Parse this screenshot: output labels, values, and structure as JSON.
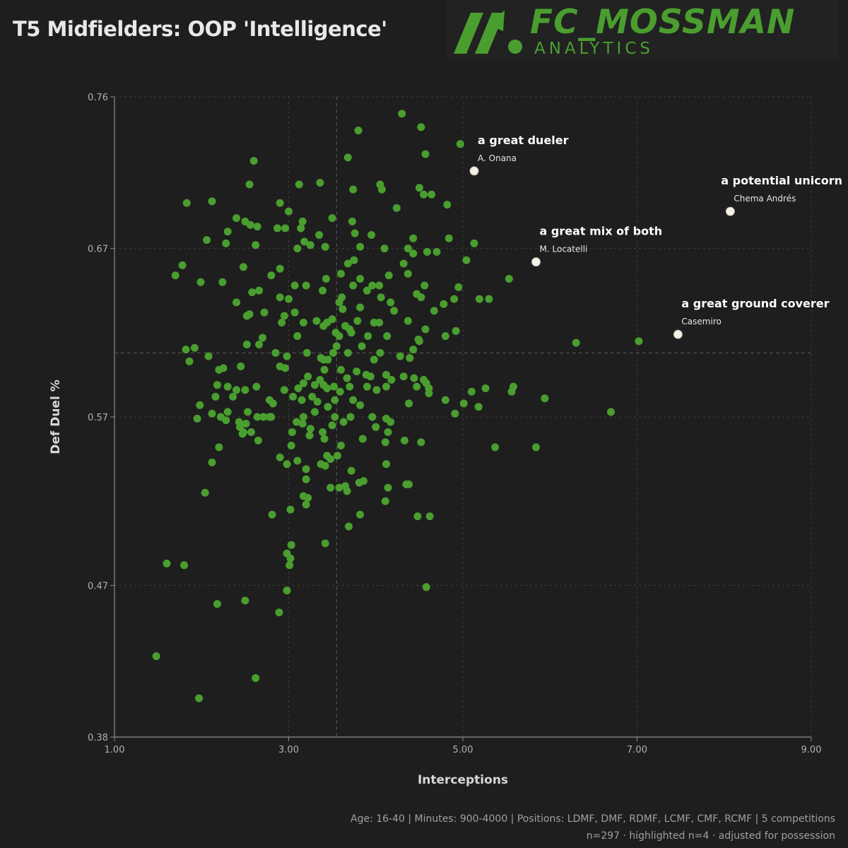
{
  "title": "T5 Midfielders: OOP 'Intelligence'",
  "brand": {
    "name": "FC_MOSSMAN",
    "subtitle": "ANALYTICS",
    "color": "#4a9e2f"
  },
  "footer": {
    "line1": "Age: 16-40 | Minutes: 900-4000 | Positions: LDMF, DMF, RDMF, LCMF, CMF, RCMF | 5 competitions",
    "line2": "n=297 · highlighted n=4 · adjusted for possession"
  },
  "chart_data": {
    "type": "scatter",
    "xlabel": "Interceptions",
    "ylabel": "Def Duel %",
    "xlim": [
      1.0,
      9.0
    ],
    "ylim": [
      0.38,
      0.76
    ],
    "xticks": [
      "1.00",
      "3.00",
      "5.00",
      "7.00",
      "9.00"
    ],
    "xtick_values": [
      1,
      3,
      5,
      7,
      9
    ],
    "yticks": [
      "0.76",
      "0.67",
      "0.57",
      "0.47",
      "0.38"
    ],
    "ytick_values": [
      0.76,
      0.67,
      0.57,
      0.47,
      0.38
    ],
    "reference_lines": {
      "x": 3.55,
      "y": 0.608
    },
    "colors": {
      "points": "#4a9e2f",
      "highlight": "#f4f1e6",
      "grid": "#3c3c3c",
      "background": "#1e1e1e"
    },
    "highlighted": [
      {
        "player": "A. Onana",
        "annotation": "a great dueler",
        "x": 5.13,
        "y": 0.716
      },
      {
        "player": "Chema Andrés",
        "annotation": "a potential unicorn",
        "x": 8.07,
        "y": 0.692
      },
      {
        "player": "M. Locatelli",
        "annotation": "a great mix of both",
        "x": 5.84,
        "y": 0.662
      },
      {
        "player": "Casemiro",
        "annotation": "a great ground coverer",
        "x": 7.47,
        "y": 0.619
      }
    ],
    "points": [
      [
        4.3,
        0.75
      ],
      [
        4.52,
        0.742
      ],
      [
        3.8,
        0.74
      ],
      [
        4.97,
        0.732
      ],
      [
        4.57,
        0.726
      ],
      [
        3.68,
        0.724
      ],
      [
        2.6,
        0.722
      ],
      [
        2.55,
        0.708
      ],
      [
        3.36,
        0.709
      ],
      [
        3.12,
        0.708
      ],
      [
        4.05,
        0.708
      ],
      [
        4.5,
        0.706
      ],
      [
        4.64,
        0.702
      ],
      [
        3.74,
        0.705
      ],
      [
        4.07,
        0.705
      ],
      [
        4.55,
        0.702
      ],
      [
        1.83,
        0.697
      ],
      [
        2.12,
        0.698
      ],
      [
        2.9,
        0.697
      ],
      [
        4.82,
        0.696
      ],
      [
        4.24,
        0.694
      ],
      [
        3.0,
        0.692
      ],
      [
        2.4,
        0.688
      ],
      [
        3.5,
        0.688
      ],
      [
        3.16,
        0.686
      ],
      [
        3.73,
        0.686
      ],
      [
        2.5,
        0.686
      ],
      [
        2.3,
        0.68
      ],
      [
        2.56,
        0.684
      ],
      [
        2.64,
        0.683
      ],
      [
        3.14,
        0.682
      ],
      [
        2.87,
        0.682
      ],
      [
        2.96,
        0.682
      ],
      [
        3.35,
        0.678
      ],
      [
        3.76,
        0.679
      ],
      [
        4.84,
        0.676
      ],
      [
        2.06,
        0.675
      ],
      [
        3.95,
        0.678
      ],
      [
        4.43,
        0.676
      ],
      [
        3.18,
        0.674
      ],
      [
        2.62,
        0.672
      ],
      [
        3.1,
        0.67
      ],
      [
        3.25,
        0.672
      ],
      [
        3.82,
        0.671
      ],
      [
        3.42,
        0.671
      ],
      [
        4.1,
        0.67
      ],
      [
        4.37,
        0.67
      ],
      [
        2.28,
        0.673
      ],
      [
        4.59,
        0.668
      ],
      [
        4.7,
        0.668
      ],
      [
        4.43,
        0.667
      ],
      [
        5.04,
        0.663
      ],
      [
        5.13,
        0.673
      ],
      [
        3.68,
        0.661
      ],
      [
        3.75,
        0.663
      ],
      [
        4.32,
        0.661
      ],
      [
        1.78,
        0.66
      ],
      [
        1.7,
        0.654
      ],
      [
        2.48,
        0.659
      ],
      [
        2.9,
        0.658
      ],
      [
        2.8,
        0.654
      ],
      [
        3.6,
        0.655
      ],
      [
        3.43,
        0.652
      ],
      [
        4.15,
        0.654
      ],
      [
        4.37,
        0.655
      ],
      [
        5.53,
        0.652
      ],
      [
        1.99,
        0.65
      ],
      [
        2.24,
        0.65
      ],
      [
        3.82,
        0.652
      ],
      [
        3.74,
        0.648
      ],
      [
        3.96,
        0.648
      ],
      [
        4.04,
        0.648
      ],
      [
        4.56,
        0.648
      ],
      [
        4.95,
        0.647
      ],
      [
        3.07,
        0.648
      ],
      [
        3.2,
        0.648
      ],
      [
        2.66,
        0.645
      ],
      [
        3.9,
        0.645
      ],
      [
        2.58,
        0.644
      ],
      [
        3.39,
        0.645
      ],
      [
        4.47,
        0.643
      ],
      [
        2.9,
        0.641
      ],
      [
        3.0,
        0.64
      ],
      [
        3.61,
        0.641
      ],
      [
        4.06,
        0.641
      ],
      [
        4.52,
        0.641
      ],
      [
        4.9,
        0.64
      ],
      [
        5.19,
        0.64
      ],
      [
        5.3,
        0.64
      ],
      [
        2.4,
        0.638
      ],
      [
        3.58,
        0.638
      ],
      [
        4.17,
        0.638
      ],
      [
        4.78,
        0.637
      ],
      [
        3.62,
        0.634
      ],
      [
        3.82,
        0.635
      ],
      [
        4.21,
        0.633
      ],
      [
        4.67,
        0.633
      ],
      [
        2.72,
        0.632
      ],
      [
        2.55,
        0.631
      ],
      [
        3.07,
        0.632
      ],
      [
        2.52,
        0.63
      ],
      [
        2.95,
        0.63
      ],
      [
        3.5,
        0.628
      ],
      [
        3.79,
        0.627
      ],
      [
        3.98,
        0.626
      ],
      [
        4.04,
        0.626
      ],
      [
        4.37,
        0.627
      ],
      [
        3.4,
        0.624
      ],
      [
        2.92,
        0.626
      ],
      [
        3.17,
        0.626
      ],
      [
        3.32,
        0.627
      ],
      [
        3.44,
        0.626
      ],
      [
        3.65,
        0.624
      ],
      [
        3.7,
        0.622
      ],
      [
        3.54,
        0.62
      ],
      [
        3.72,
        0.62
      ],
      [
        4.57,
        0.622
      ],
      [
        4.8,
        0.618
      ],
      [
        3.1,
        0.618
      ],
      [
        2.7,
        0.617
      ],
      [
        3.58,
        0.618
      ],
      [
        3.91,
        0.618
      ],
      [
        4.13,
        0.618
      ],
      [
        4.49,
        0.616
      ],
      [
        4.92,
        0.621
      ],
      [
        4.5,
        0.615
      ],
      [
        2.52,
        0.613
      ],
      [
        2.66,
        0.613
      ],
      [
        1.82,
        0.61
      ],
      [
        2.08,
        0.606
      ],
      [
        2.85,
        0.608
      ],
      [
        2.98,
        0.606
      ],
      [
        3.21,
        0.608
      ],
      [
        3.51,
        0.608
      ],
      [
        3.68,
        0.608
      ],
      [
        3.37,
        0.605
      ],
      [
        3.4,
        0.604
      ],
      [
        3.45,
        0.604
      ],
      [
        3.98,
        0.604
      ],
      [
        4.39,
        0.605
      ],
      [
        1.92,
        0.611
      ],
      [
        3.55,
        0.612
      ],
      [
        3.84,
        0.612
      ],
      [
        4.05,
        0.608
      ],
      [
        4.28,
        0.606
      ],
      [
        4.43,
        0.61
      ],
      [
        6.3,
        0.614
      ],
      [
        7.02,
        0.615
      ],
      [
        1.86,
        0.603
      ],
      [
        2.25,
        0.599
      ],
      [
        2.45,
        0.6
      ],
      [
        2.9,
        0.6
      ],
      [
        2.96,
        0.599
      ],
      [
        3.41,
        0.598
      ],
      [
        3.6,
        0.598
      ],
      [
        3.78,
        0.597
      ],
      [
        3.94,
        0.594
      ],
      [
        4.12,
        0.595
      ],
      [
        4.32,
        0.594
      ],
      [
        4.44,
        0.593
      ],
      [
        4.55,
        0.592
      ],
      [
        4.58,
        0.59
      ],
      [
        2.2,
        0.598
      ],
      [
        3.22,
        0.594
      ],
      [
        3.36,
        0.592
      ],
      [
        3.67,
        0.593
      ],
      [
        3.89,
        0.595
      ],
      [
        4.18,
        0.592
      ],
      [
        4.47,
        0.588
      ],
      [
        4.61,
        0.587
      ],
      [
        2.18,
        0.589
      ],
      [
        2.63,
        0.588
      ],
      [
        2.95,
        0.586
      ],
      [
        3.11,
        0.587
      ],
      [
        3.44,
        0.587
      ],
      [
        3.52,
        0.588
      ],
      [
        3.7,
        0.588
      ],
      [
        3.9,
        0.588
      ],
      [
        2.3,
        0.588
      ],
      [
        2.4,
        0.586
      ],
      [
        2.5,
        0.586
      ],
      [
        3.17,
        0.59
      ],
      [
        3.3,
        0.589
      ],
      [
        3.4,
        0.589
      ],
      [
        3.59,
        0.585
      ],
      [
        4.01,
        0.586
      ],
      [
        4.12,
        0.588
      ],
      [
        4.61,
        0.584
      ],
      [
        5.1,
        0.585
      ],
      [
        5.26,
        0.587
      ],
      [
        5.58,
        0.588
      ],
      [
        5.56,
        0.585
      ],
      [
        3.27,
        0.582
      ],
      [
        2.16,
        0.582
      ],
      [
        2.36,
        0.582
      ],
      [
        3.05,
        0.582
      ],
      [
        3.53,
        0.58
      ],
      [
        3.74,
        0.58
      ],
      [
        2.78,
        0.58
      ],
      [
        3.15,
        0.58
      ],
      [
        3.33,
        0.579
      ],
      [
        4.8,
        0.58
      ],
      [
        5.01,
        0.578
      ],
      [
        5.94,
        0.581
      ],
      [
        1.98,
        0.577
      ],
      [
        2.82,
        0.578
      ],
      [
        3.45,
        0.576
      ],
      [
        3.82,
        0.577
      ],
      [
        4.38,
        0.578
      ],
      [
        5.18,
        0.576
      ],
      [
        2.3,
        0.573
      ],
      [
        2.53,
        0.573
      ],
      [
        3.3,
        0.573
      ],
      [
        2.64,
        0.57
      ],
      [
        2.71,
        0.57
      ],
      [
        2.78,
        0.57
      ],
      [
        3.17,
        0.57
      ],
      [
        3.53,
        0.57
      ],
      [
        3.71,
        0.57
      ],
      [
        3.96,
        0.57
      ],
      [
        4.91,
        0.572
      ],
      [
        6.7,
        0.573
      ],
      [
        2.22,
        0.57
      ],
      [
        2.8,
        0.57
      ],
      [
        2.28,
        0.568
      ],
      [
        2.43,
        0.567
      ],
      [
        2.51,
        0.566
      ],
      [
        3.09,
        0.567
      ],
      [
        3.63,
        0.567
      ],
      [
        4.12,
        0.569
      ],
      [
        4.17,
        0.567
      ],
      [
        1.95,
        0.569
      ],
      [
        2.12,
        0.572
      ],
      [
        3.16,
        0.566
      ],
      [
        3.5,
        0.565
      ],
      [
        4.0,
        0.564
      ],
      [
        2.44,
        0.564
      ],
      [
        3.25,
        0.563
      ],
      [
        3.39,
        0.561
      ],
      [
        2.48,
        0.561
      ],
      [
        2.57,
        0.561
      ],
      [
        3.04,
        0.561
      ],
      [
        4.14,
        0.561
      ],
      [
        2.47,
        0.56
      ],
      [
        3.41,
        0.557
      ],
      [
        3.85,
        0.557
      ],
      [
        4.33,
        0.556
      ],
      [
        4.52,
        0.555
      ],
      [
        2.65,
        0.556
      ],
      [
        3.24,
        0.559
      ],
      [
        4.11,
        0.555
      ],
      [
        2.2,
        0.552
      ],
      [
        3.6,
        0.553
      ],
      [
        3.03,
        0.553
      ],
      [
        5.37,
        0.552
      ],
      [
        5.84,
        0.552
      ],
      [
        3.44,
        0.547
      ],
      [
        3.56,
        0.547
      ],
      [
        2.9,
        0.546
      ],
      [
        3.1,
        0.544
      ],
      [
        3.48,
        0.545
      ],
      [
        2.98,
        0.542
      ],
      [
        3.37,
        0.542
      ],
      [
        3.42,
        0.541
      ],
      [
        4.12,
        0.542
      ],
      [
        3.72,
        0.538
      ],
      [
        2.12,
        0.543
      ],
      [
        3.2,
        0.539
      ],
      [
        3.2,
        0.533
      ],
      [
        3.86,
        0.532
      ],
      [
        4.38,
        0.53
      ],
      [
        3.81,
        0.531
      ],
      [
        3.65,
        0.529
      ],
      [
        3.48,
        0.528
      ],
      [
        3.58,
        0.528
      ],
      [
        4.14,
        0.528
      ],
      [
        4.35,
        0.53
      ],
      [
        3.67,
        0.526
      ],
      [
        2.04,
        0.525
      ],
      [
        3.17,
        0.523
      ],
      [
        3.22,
        0.522
      ],
      [
        4.11,
        0.52
      ],
      [
        3.2,
        0.518
      ],
      [
        3.02,
        0.515
      ],
      [
        3.82,
        0.512
      ],
      [
        2.81,
        0.512
      ],
      [
        4.62,
        0.511
      ],
      [
        4.48,
        0.511
      ],
      [
        3.69,
        0.505
      ],
      [
        3.42,
        0.495
      ],
      [
        3.03,
        0.494
      ],
      [
        2.98,
        0.489
      ],
      [
        3.02,
        0.486
      ],
      [
        3.01,
        0.482
      ],
      [
        1.6,
        0.483
      ],
      [
        1.8,
        0.482
      ],
      [
        2.98,
        0.467
      ],
      [
        4.58,
        0.469
      ],
      [
        2.5,
        0.461
      ],
      [
        2.18,
        0.459
      ],
      [
        2.89,
        0.454
      ],
      [
        1.48,
        0.428
      ],
      [
        2.62,
        0.415
      ],
      [
        1.97,
        0.403
      ]
    ]
  }
}
